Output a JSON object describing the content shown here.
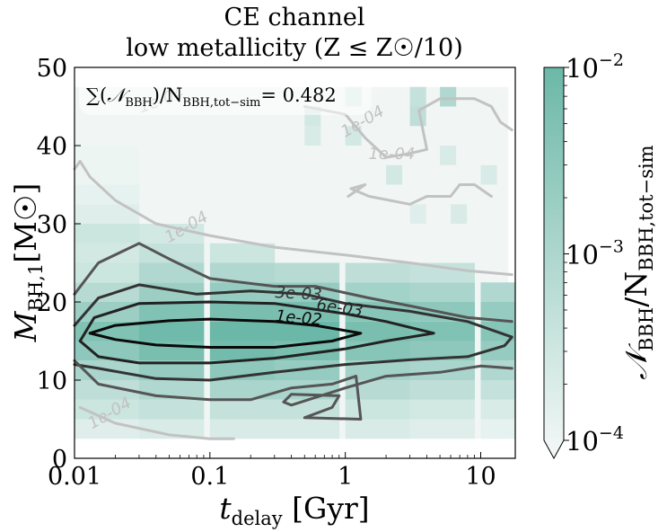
{
  "chart_data": {
    "type": "heatmap",
    "title_line1": "CE channel",
    "title_line2": "low metallicity (Z ≤ Z☉/10)",
    "annotation": {
      "lhs_sum": "∑(",
      "lhs_N": "𝒩",
      "lhs_N_sub": "BBH",
      "lhs_mid": ")/N",
      "lhs_den_sub": "BBH,tot−sim",
      "rhs": "= 0.482"
    },
    "xlabel": {
      "main": "t",
      "sub": "delay",
      "unit": " [Gyr]"
    },
    "ylabel": {
      "main": "M",
      "sub": "BH,1",
      "unit": "[M☉]"
    },
    "xscale": "log",
    "xlim": [
      0.01,
      18
    ],
    "ylim": [
      0,
      50
    ],
    "xticks": [
      {
        "value": 0.01,
        "label": "0.01"
      },
      {
        "value": 0.1,
        "label": "0.1"
      },
      {
        "value": 1,
        "label": "1"
      },
      {
        "value": 10,
        "label": "10"
      }
    ],
    "yticks": [
      {
        "value": 0,
        "label": "0"
      },
      {
        "value": 10,
        "label": "10"
      },
      {
        "value": 20,
        "label": "20"
      },
      {
        "value": 30,
        "label": "30"
      },
      {
        "value": 40,
        "label": "40"
      },
      {
        "value": 50,
        "label": "50"
      }
    ],
    "colorbar": {
      "label_main": "𝒩",
      "label_sub1": "BBH",
      "label_mid": "/N",
      "label_sub2": "BBH,tot−sim",
      "scale": "log",
      "range": [
        0.0001,
        0.01
      ],
      "ticks": [
        {
          "value": 0.01,
          "label_base": "10",
          "label_exp": "−2"
        },
        {
          "value": 0.001,
          "label_base": "10",
          "label_exp": "−3"
        },
        {
          "value": 0.0001,
          "label_base": "10",
          "label_exp": "−4"
        }
      ],
      "color_low": "#f4f8f7",
      "color_high": "#6cb8a8"
    },
    "heatmap": {
      "x_log_step": 0.12,
      "y_step": 2.5,
      "note_cells": "log10 of fraction per (t_delay, M_BH,1) bin",
      "cells": [
        {
          "x0": 0.01,
          "y0": 2.5,
          "v": -3.7
        },
        {
          "x0": 0.01,
          "y0": 5,
          "v": -3.4
        },
        {
          "x0": 0.01,
          "y0": 7.5,
          "v": -3.2
        },
        {
          "x0": 0.01,
          "y0": 10,
          "v": -2.9
        },
        {
          "x0": 0.01,
          "y0": 12.5,
          "v": -2.5
        },
        {
          "x0": 0.01,
          "y0": 15,
          "v": -2.3
        },
        {
          "x0": 0.01,
          "y0": 17.5,
          "v": -2.7
        },
        {
          "x0": 0.01,
          "y0": 20,
          "v": -3.1
        },
        {
          "x0": 0.01,
          "y0": 22.5,
          "v": -3.4
        },
        {
          "x0": 0.01,
          "y0": 25,
          "v": -3.5
        },
        {
          "x0": 0.01,
          "y0": 27.5,
          "v": -3.4
        },
        {
          "x0": 0.01,
          "y0": 30,
          "v": -3.7
        },
        {
          "x0": 0.01,
          "y0": 32.5,
          "v": -3.8
        },
        {
          "x0": 0.01,
          "y0": 35,
          "v": -3.9
        },
        {
          "x0": 0.01,
          "y0": 37.5,
          "v": -3.9
        },
        {
          "x0": 0.03,
          "y0": 2.5,
          "v": -3.6
        },
        {
          "x0": 0.03,
          "y0": 5,
          "v": -3.3
        },
        {
          "x0": 0.03,
          "y0": 7.5,
          "v": -3.0
        },
        {
          "x0": 0.03,
          "y0": 10,
          "v": -2.6
        },
        {
          "x0": 0.03,
          "y0": 12.5,
          "v": -2.2
        },
        {
          "x0": 0.03,
          "y0": 15,
          "v": -2.05
        },
        {
          "x0": 0.03,
          "y0": 17.5,
          "v": -2.3
        },
        {
          "x0": 0.03,
          "y0": 20,
          "v": -2.7
        },
        {
          "x0": 0.03,
          "y0": 22.5,
          "v": -3.0
        },
        {
          "x0": 0.03,
          "y0": 25,
          "v": -3.3
        },
        {
          "x0": 0.03,
          "y0": 27.5,
          "v": -3.5
        },
        {
          "x0": 0.1,
          "y0": 2.5,
          "v": -3.6
        },
        {
          "x0": 0.1,
          "y0": 5,
          "v": -3.3
        },
        {
          "x0": 0.1,
          "y0": 7.5,
          "v": -2.9
        },
        {
          "x0": 0.1,
          "y0": 10,
          "v": -2.5
        },
        {
          "x0": 0.1,
          "y0": 12.5,
          "v": -2.1
        },
        {
          "x0": 0.1,
          "y0": 15,
          "v": -2.0
        },
        {
          "x0": 0.1,
          "y0": 17.5,
          "v": -2.2
        },
        {
          "x0": 0.1,
          "y0": 20,
          "v": -2.6
        },
        {
          "x0": 0.1,
          "y0": 22.5,
          "v": -3.0
        },
        {
          "x0": 0.1,
          "y0": 25,
          "v": -3.4
        },
        {
          "x0": 0.3,
          "y0": 2.5,
          "v": -3.6
        },
        {
          "x0": 0.3,
          "y0": 5,
          "v": -3.3
        },
        {
          "x0": 0.3,
          "y0": 7.5,
          "v": -2.9
        },
        {
          "x0": 0.3,
          "y0": 10,
          "v": -2.6
        },
        {
          "x0": 0.3,
          "y0": 12.5,
          "v": -2.2
        },
        {
          "x0": 0.3,
          "y0": 15,
          "v": -2.0
        },
        {
          "x0": 0.3,
          "y0": 17.5,
          "v": -2.2
        },
        {
          "x0": 0.3,
          "y0": 20,
          "v": -2.6
        },
        {
          "x0": 0.3,
          "y0": 22.5,
          "v": -3.1
        },
        {
          "x0": 1,
          "y0": 2.5,
          "v": -3.6
        },
        {
          "x0": 1,
          "y0": 5,
          "v": -3.4
        },
        {
          "x0": 1,
          "y0": 7.5,
          "v": -3.1
        },
        {
          "x0": 1,
          "y0": 10,
          "v": -2.8
        },
        {
          "x0": 1,
          "y0": 12.5,
          "v": -2.4
        },
        {
          "x0": 1,
          "y0": 15,
          "v": -2.2
        },
        {
          "x0": 1,
          "y0": 17.5,
          "v": -2.4
        },
        {
          "x0": 1,
          "y0": 20,
          "v": -2.8
        },
        {
          "x0": 1,
          "y0": 22.5,
          "v": -3.2
        },
        {
          "x0": 3,
          "y0": 2.5,
          "v": -3.7
        },
        {
          "x0": 3,
          "y0": 5,
          "v": -3.5
        },
        {
          "x0": 3,
          "y0": 7.5,
          "v": -3.2
        },
        {
          "x0": 3,
          "y0": 10,
          "v": -2.9
        },
        {
          "x0": 3,
          "y0": 12.5,
          "v": -2.5
        },
        {
          "x0": 3,
          "y0": 15,
          "v": -2.3
        },
        {
          "x0": 3,
          "y0": 17.5,
          "v": -2.5
        },
        {
          "x0": 3,
          "y0": 20,
          "v": -2.9
        },
        {
          "x0": 3,
          "y0": 22.5,
          "v": -3.3
        },
        {
          "x0": 10,
          "y0": 2.5,
          "v": -3.8
        },
        {
          "x0": 10,
          "y0": 5,
          "v": -3.6
        },
        {
          "x0": 10,
          "y0": 7.5,
          "v": -3.3
        },
        {
          "x0": 10,
          "y0": 10,
          "v": -3.0
        },
        {
          "x0": 10,
          "y0": 12.5,
          "v": -2.6
        },
        {
          "x0": 10,
          "y0": 15,
          "v": -2.4
        },
        {
          "x0": 10,
          "y0": 17.5,
          "v": -2.6
        },
        {
          "x0": 10,
          "y0": 20,
          "v": -3.0
        }
      ],
      "sparse_upper": [
        {
          "x0": 1,
          "y0": 45,
          "v": -3.6
        },
        {
          "x0": 3,
          "y0": 45,
          "v": -3.3
        },
        {
          "x0": 5,
          "y0": 45,
          "v": -3.0
        },
        {
          "x0": 1,
          "y0": 40,
          "v": -3.5
        },
        {
          "x0": 3,
          "y0": 42.5,
          "v": -3.2
        },
        {
          "x0": 0.5,
          "y0": 42.5,
          "v": -3.5
        },
        {
          "x0": 0.5,
          "y0": 40,
          "v": -3.6
        },
        {
          "x0": 2,
          "y0": 35,
          "v": -3.5
        },
        {
          "x0": 5,
          "y0": 37.5,
          "v": -3.6
        },
        {
          "x0": 10,
          "y0": 35,
          "v": -3.6
        },
        {
          "x0": 3,
          "y0": 30,
          "v": -3.7
        },
        {
          "x0": 6,
          "y0": 30,
          "v": -3.6
        }
      ]
    },
    "contours": [
      {
        "level": "1e-02",
        "color": "#0a0a0a",
        "label": {
          "x": 0.45,
          "y": 17.3,
          "text": "1e-02",
          "angle": 5
        },
        "points": [
          [
            0.013,
            16
          ],
          [
            0.02,
            17
          ],
          [
            0.05,
            17.6
          ],
          [
            0.1,
            17.8
          ],
          [
            0.3,
            17.5
          ],
          [
            0.6,
            17
          ],
          [
            1.3,
            16
          ],
          [
            0.8,
            15
          ],
          [
            0.3,
            14.2
          ],
          [
            0.1,
            14.2
          ],
          [
            0.04,
            14.5
          ],
          [
            0.02,
            15.2
          ],
          [
            0.013,
            16
          ]
        ]
      },
      {
        "level": "6e-03",
        "color": "#222222",
        "label": {
          "x": 0.9,
          "y": 18.6,
          "text": "6e-03",
          "angle": 8
        },
        "points": [
          [
            0.011,
            15
          ],
          [
            0.014,
            18
          ],
          [
            0.03,
            19.8
          ],
          [
            0.1,
            20
          ],
          [
            0.3,
            19.8
          ],
          [
            1,
            18.5
          ],
          [
            2,
            17.5
          ],
          [
            4.5,
            16
          ],
          [
            2,
            15
          ],
          [
            1,
            14
          ],
          [
            0.3,
            12.8
          ],
          [
            0.1,
            12.2
          ],
          [
            0.03,
            12.2
          ],
          [
            0.015,
            13
          ],
          [
            0.011,
            15
          ]
        ]
      },
      {
        "level": "3e-03",
        "color": "#333333",
        "label": {
          "x": 0.45,
          "y": 20.4,
          "text": "3e-03",
          "angle": 3
        },
        "points": [
          [
            0.01,
            17
          ],
          [
            0.015,
            20.5
          ],
          [
            0.03,
            22.2
          ],
          [
            0.08,
            21
          ],
          [
            0.2,
            21.4
          ],
          [
            0.5,
            21
          ],
          [
            1,
            19.8
          ],
          [
            3,
            18.8
          ],
          [
            8,
            17.5
          ],
          [
            17,
            15.5
          ],
          [
            15,
            14.4
          ],
          [
            8,
            13
          ],
          [
            3,
            12.6
          ],
          [
            1,
            12
          ],
          [
            0.3,
            11
          ],
          [
            0.1,
            10
          ],
          [
            0.04,
            10.2
          ],
          [
            0.015,
            11.5
          ],
          [
            0.01,
            12
          ]
        ]
      },
      {
        "level": "1e-03",
        "color": "#555555",
        "points": [
          [
            0.01,
            21
          ],
          [
            0.015,
            25
          ],
          [
            0.03,
            27.5
          ],
          [
            0.05,
            25.5
          ],
          [
            0.1,
            23
          ],
          [
            0.3,
            22
          ],
          [
            0.6,
            22
          ],
          [
            1.5,
            20.5
          ],
          [
            3,
            19.5
          ],
          [
            8,
            18
          ],
          [
            17,
            17.5
          ]
        ],
        "points2": [
          [
            0.01,
            12.5
          ],
          [
            0.015,
            9.5
          ],
          [
            0.04,
            8
          ],
          [
            0.1,
            7.5
          ],
          [
            0.2,
            7.5
          ],
          [
            0.4,
            9
          ],
          [
            0.8,
            9.5
          ],
          [
            1.2,
            10.5
          ],
          [
            1.3,
            5
          ],
          [
            0.5,
            5.2
          ],
          [
            0.8,
            6.5
          ],
          [
            0.9,
            8
          ],
          [
            0.4,
            8.2
          ],
          [
            0.35,
            7.2
          ],
          [
            0.4,
            6.8
          ],
          [
            1,
            9
          ],
          [
            2,
            10.5
          ],
          [
            5,
            11
          ],
          [
            10,
            11.8
          ],
          [
            17,
            11.5
          ]
        ]
      },
      {
        "level": "1e-04",
        "color": "#c2c2c2",
        "label": {
          "x": 0.07,
          "y": 29,
          "text": "1e-04",
          "angle": -30
        },
        "points": [
          [
            0.01,
            37
          ],
          [
            0.011,
            38
          ],
          [
            0.013,
            36
          ],
          [
            0.02,
            33
          ],
          [
            0.04,
            30
          ],
          [
            0.1,
            28.5
          ],
          [
            0.3,
            27
          ],
          [
            1,
            26
          ],
          [
            3,
            25
          ],
          [
            8,
            24
          ],
          [
            17,
            23.5
          ]
        ],
        "points2": [
          [
            0.011,
            6.5
          ],
          [
            0.02,
            4.5
          ],
          [
            0.05,
            3
          ],
          [
            0.1,
            2.5
          ],
          [
            0.15,
            2.5
          ]
        ],
        "points3": [
          [
            1.05,
            33.5
          ],
          [
            1.4,
            35
          ],
          [
            1.1,
            34.5
          ],
          [
            1.5,
            33.5
          ],
          [
            3,
            32.5
          ],
          [
            4,
            33.5
          ],
          [
            6,
            33.5
          ],
          [
            7,
            35
          ],
          [
            9,
            35
          ],
          [
            12,
            33.5
          ]
        ],
        "points4": [
          [
            0.5,
            45
          ],
          [
            1,
            44
          ],
          [
            1.4,
            41
          ],
          [
            2,
            38.5
          ],
          [
            3,
            39
          ],
          [
            4,
            39.5
          ],
          [
            3.5,
            44.5
          ],
          [
            5,
            46
          ],
          [
            9,
            46
          ],
          [
            12,
            45
          ],
          [
            14,
            43
          ],
          [
            17,
            42
          ]
        ],
        "labels": [
          {
            "x": 0.045,
            "y": 45.2,
            "text": "1e-04",
            "angle": -20
          },
          {
            "x": 1.4,
            "y": 42.5,
            "text": "1e-04",
            "angle": -30
          },
          {
            "x": 2.2,
            "y": 38.3,
            "text": "1e-04",
            "angle": 0
          },
          {
            "x": 0.019,
            "y": 5.2,
            "text": "1e-04",
            "angle": -30
          }
        ]
      }
    ]
  }
}
